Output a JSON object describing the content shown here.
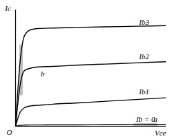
{
  "chart_data": {
    "type": "line",
    "x_label": "Vce",
    "y_label": "Ic",
    "origin_label": "O",
    "x": [
      0,
      0.3,
      0.6,
      1.0,
      1.5,
      2.5,
      4,
      6,
      8,
      10
    ],
    "series": [
      {
        "name": "Ib3",
        "color": "#000000",
        "label_x": 8.2,
        "label_y": 8.95,
        "values": [
          0,
          5.5,
          7.8,
          8.3,
          8.4,
          8.45,
          8.5,
          8.55,
          8.6,
          8.65
        ]
      },
      {
        "name": "Ib2",
        "color": "#000000",
        "label_x": 8.2,
        "label_y": 5.95,
        "values": [
          0,
          3.5,
          4.8,
          5.0,
          5.1,
          5.15,
          5.25,
          5.35,
          5.45,
          5.55
        ]
      },
      {
        "name": "Ib1",
        "color": "#000000",
        "label_x": 8.2,
        "label_y": 2.95,
        "values": [
          0,
          1.2,
          1.6,
          1.75,
          1.8,
          1.9,
          2.0,
          2.15,
          2.3,
          2.45
        ]
      },
      {
        "name": "Ib = 0",
        "color": "#000000",
        "label_x": 8.0,
        "label_y": 0.6,
        "values": [
          0,
          0.08,
          0.1,
          0.11,
          0.11,
          0.12,
          0.12,
          0.13,
          0.14,
          0.15
        ]
      }
    ],
    "annotations": [
      {
        "text": "b",
        "x": 1.8,
        "y": 4.5
      },
      {
        "text": "a",
        "x": 9.3,
        "y": 0.6
      }
    ],
    "regions": [
      {
        "color": "#b0b0b0",
        "x": [
          0.37,
          0.37
        ],
        "y": [
          2.8,
          6.9
        ]
      },
      {
        "color": "#b0b0b0",
        "x": [
          7.9,
          9.3
        ],
        "y": [
          0.12,
          0.14
        ]
      }
    ],
    "xlim": [
      0,
      10
    ],
    "ylim": [
      0,
      10
    ],
    "xticks": [],
    "yticks": [],
    "tick_labels": false
  }
}
